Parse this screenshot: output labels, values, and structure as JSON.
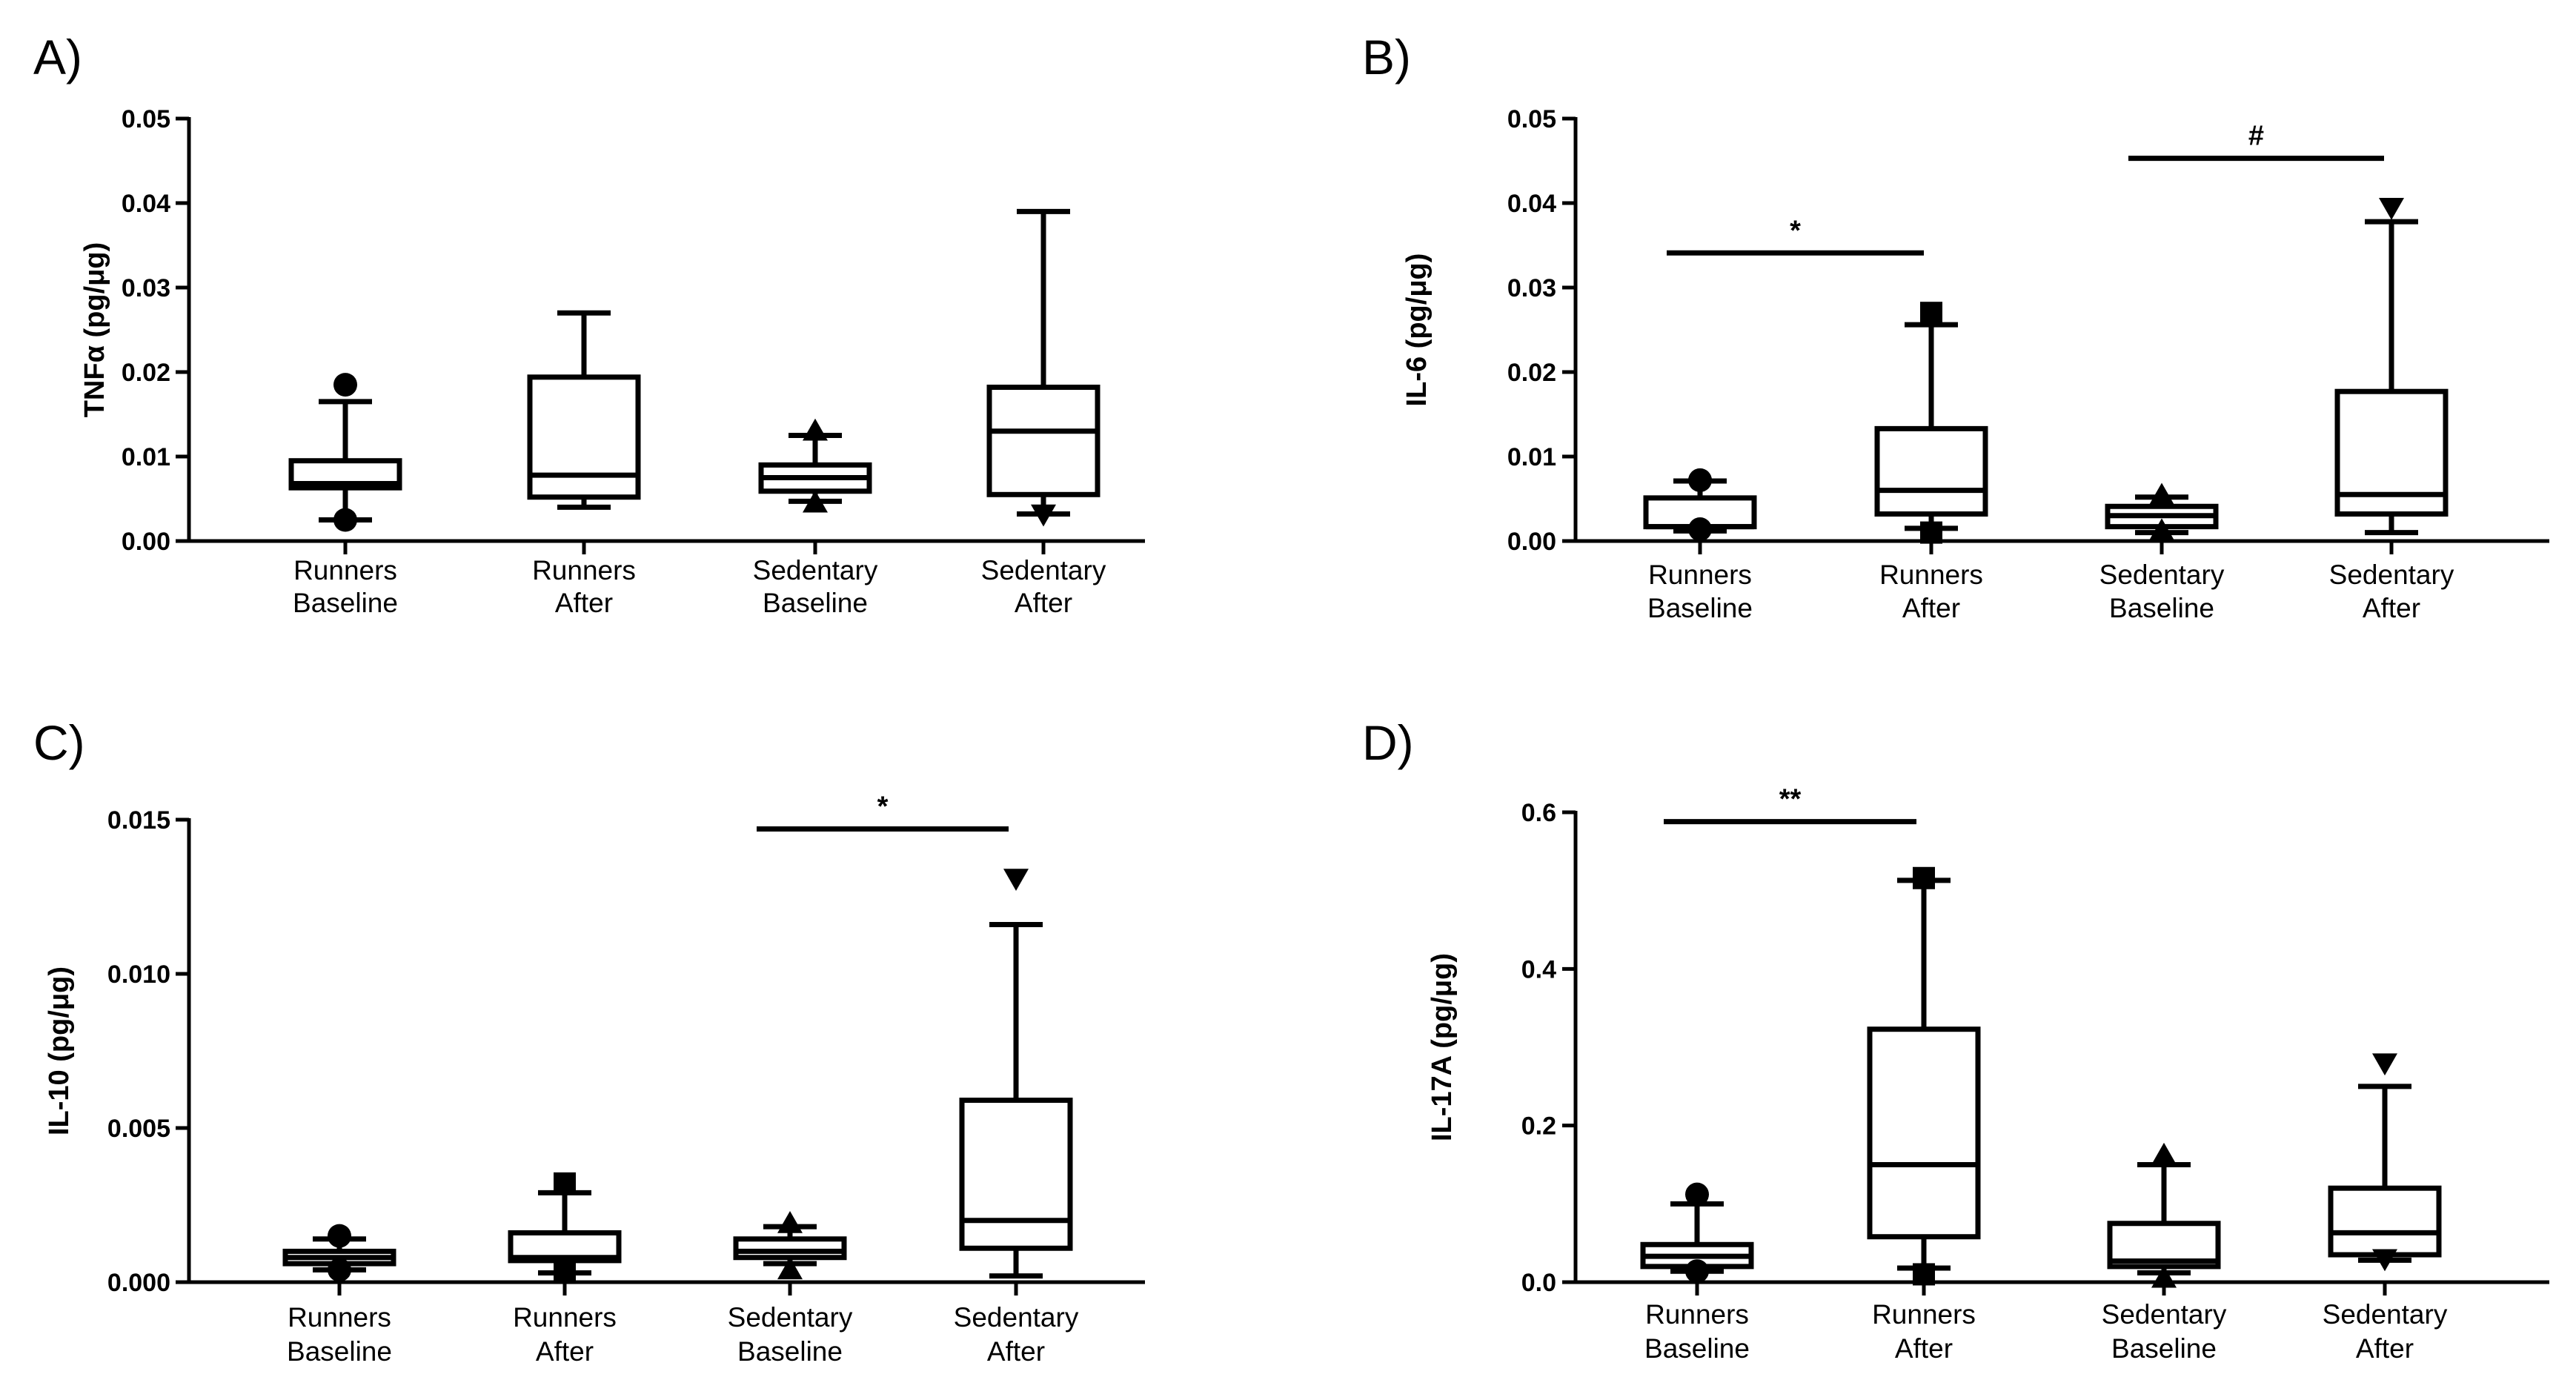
{
  "figure": {
    "panels": [
      {
        "letter": "A)",
        "ylabel": "TNFα (pg/μg)",
        "yticks": [
          "0.00",
          "0.01",
          "0.02",
          "0.03",
          "0.04",
          "0.05"
        ]
      },
      {
        "letter": "B)",
        "ylabel": "IL-6 (pg/μg)",
        "yticks": [
          "0.00",
          "0.01",
          "0.02",
          "0.03",
          "0.04",
          "0.05"
        ]
      },
      {
        "letter": "C)",
        "ylabel": "IL-10 (pg/μg)",
        "yticks": [
          "0.000",
          "0.005",
          "0.010",
          "0.015"
        ]
      },
      {
        "letter": "D)",
        "ylabel": "IL-17A (pg/μg)",
        "yticks": [
          "0.0",
          "0.2",
          "0.4",
          "0.6"
        ]
      }
    ]
  },
  "chart_data": [
    {
      "type": "box",
      "title": "A)",
      "ylabel": "TNFα (pg/μg)",
      "ylim": [
        0,
        0.05
      ],
      "ytick_values": [
        0,
        0.01,
        0.02,
        0.03,
        0.04,
        0.05
      ],
      "categories": [
        "Runners\nBaseline",
        "Runners\nAfter",
        "Sedentary\nBaseline",
        "Sedentary\nAfter"
      ],
      "boxes": [
        {
          "whisker_low": 0.0025,
          "q1": 0.0063,
          "median": 0.0068,
          "q3": 0.0095,
          "whisker_high": 0.0165,
          "outliers": [
            0.0185,
            0.0025
          ],
          "marker": "circle"
        },
        {
          "whisker_low": 0.004,
          "q1": 0.0052,
          "median": 0.0078,
          "q3": 0.0194,
          "whisker_high": 0.027,
          "outliers": [],
          "marker": "square"
        },
        {
          "whisker_low": 0.0047,
          "q1": 0.0059,
          "median": 0.0075,
          "q3": 0.009,
          "whisker_high": 0.0125,
          "outliers": [
            0.013,
            0.0045
          ],
          "marker": "triangle-up"
        },
        {
          "whisker_low": 0.0032,
          "q1": 0.0055,
          "median": 0.013,
          "q3": 0.0182,
          "whisker_high": 0.039,
          "outliers": [
            0.0032
          ],
          "marker": "triangle-down"
        }
      ],
      "significance": []
    },
    {
      "type": "box",
      "title": "B)",
      "ylabel": "IL-6 (pg/μg)",
      "ylim": [
        0,
        0.05
      ],
      "ytick_values": [
        0,
        0.01,
        0.02,
        0.03,
        0.04,
        0.05
      ],
      "categories": [
        "Runners\nBaseline",
        "Runners\nAfter",
        "Sedentary\nBaseline",
        "Sedentary\nAfter"
      ],
      "boxes": [
        {
          "whisker_low": 0.0012,
          "q1": 0.0017,
          "median": 0.0017,
          "q3": 0.0051,
          "whisker_high": 0.0071,
          "outliers": [
            0.0072,
            0.0014
          ],
          "marker": "circle"
        },
        {
          "whisker_low": 0.0015,
          "q1": 0.0032,
          "median": 0.006,
          "q3": 0.0133,
          "whisker_high": 0.0256,
          "outliers": [
            0.027,
            0.001
          ],
          "marker": "square"
        },
        {
          "whisker_low": 0.001,
          "q1": 0.0017,
          "median": 0.003,
          "q3": 0.0041,
          "whisker_high": 0.0052,
          "outliers": [
            0.0054,
            0.0012
          ],
          "marker": "triangle-up"
        },
        {
          "whisker_low": 0.001,
          "q1": 0.0032,
          "median": 0.0055,
          "q3": 0.0177,
          "whisker_high": 0.0378,
          "outliers": [
            0.0395
          ],
          "marker": "triangle-down"
        }
      ],
      "significance": [
        {
          "from": 0,
          "to": 1,
          "y": 0.0341,
          "label": "*"
        },
        {
          "from": 2,
          "to": 3,
          "y": 0.0453,
          "label": "#"
        }
      ]
    },
    {
      "type": "box",
      "title": "C)",
      "ylabel": "IL-10 (pg/μg)",
      "ylim": [
        0,
        0.015
      ],
      "ytick_values": [
        0,
        0.005,
        0.01,
        0.015
      ],
      "categories": [
        "Runners\nBaseline",
        "Runners\nAfter",
        "Sedentary\nBaseline",
        "Sedentary\nAfter"
      ],
      "boxes": [
        {
          "whisker_low": 0.0004,
          "q1": 0.0006,
          "median": 0.0008,
          "q3": 0.001,
          "whisker_high": 0.0014,
          "outliers": [
            0.0015,
            0.0004
          ],
          "marker": "circle"
        },
        {
          "whisker_low": 0.0003,
          "q1": 0.0007,
          "median": 0.0008,
          "q3": 0.0016,
          "whisker_high": 0.0029,
          "outliers": [
            0.0032,
            0.0003
          ],
          "marker": "square"
        },
        {
          "whisker_low": 0.0006,
          "q1": 0.0008,
          "median": 0.001,
          "q3": 0.0014,
          "whisker_high": 0.0018,
          "outliers": [
            0.0019,
            0.0004
          ],
          "marker": "triangle-up"
        },
        {
          "whisker_low": 0.0002,
          "q1": 0.0011,
          "median": 0.002,
          "q3": 0.0059,
          "whisker_high": 0.0116,
          "outliers": [
            0.0131
          ],
          "marker": "triangle-down"
        }
      ],
      "significance": [
        {
          "from": 2,
          "to": 3,
          "y": 0.0147,
          "label": "*"
        }
      ]
    },
    {
      "type": "box",
      "title": "D)",
      "ylabel": "IL-17A (pg/μg)",
      "ylim": [
        0,
        0.6
      ],
      "ytick_values": [
        0,
        0.2,
        0.4,
        0.6
      ],
      "categories": [
        "Runners\nBaseline",
        "Runners\nAfter",
        "Sedentary\nBaseline",
        "Sedentary\nAfter"
      ],
      "boxes": [
        {
          "whisker_low": 0.014,
          "q1": 0.02,
          "median": 0.033,
          "q3": 0.048,
          "whisker_high": 0.1,
          "outliers": [
            0.112,
            0.014
          ],
          "marker": "circle"
        },
        {
          "whisker_low": 0.018,
          "q1": 0.058,
          "median": 0.15,
          "q3": 0.323,
          "whisker_high": 0.513,
          "outliers": [
            0.516,
            0.01
          ],
          "marker": "square"
        },
        {
          "whisker_low": 0.012,
          "q1": 0.02,
          "median": 0.027,
          "q3": 0.075,
          "whisker_high": 0.15,
          "outliers": [
            0.162,
            0.005
          ],
          "marker": "triangle-up"
        },
        {
          "whisker_low": 0.028,
          "q1": 0.035,
          "median": 0.063,
          "q3": 0.12,
          "whisker_high": 0.25,
          "outliers": [
            0.28,
            0.03
          ],
          "marker": "triangle-down"
        }
      ],
      "significance": [
        {
          "from": 0,
          "to": 1,
          "y": 0.588,
          "label": "**"
        }
      ]
    }
  ]
}
